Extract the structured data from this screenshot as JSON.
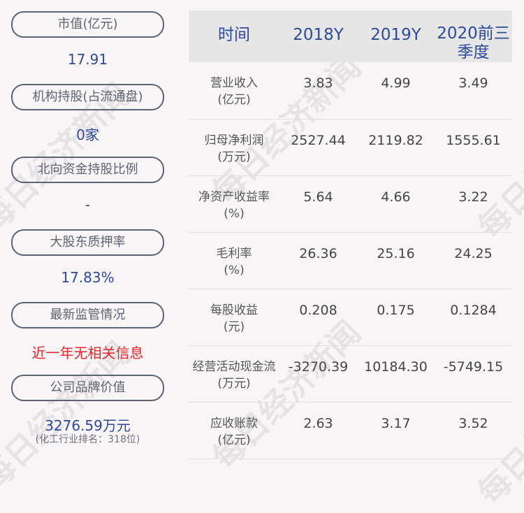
{
  "left": [
    {
      "label": "市值(亿元)",
      "value": "17.91"
    },
    {
      "label": "机构持股(占流通盘)",
      "value": "0家"
    },
    {
      "label": "北向资金持股比例",
      "value": "-"
    },
    {
      "label": "大股东质押率",
      "value": "17.83%"
    },
    {
      "label": "最新监管情况",
      "value": "近一年无相关信息"
    },
    {
      "label": "公司品牌价值",
      "value": "3276.59万元",
      "sub": "(化工行业排名：318位)"
    }
  ],
  "colors": {
    "accent": "#2d4a9a",
    "alert": "#e6262b",
    "header_bg": "#e6e6e6"
  },
  "watermark": "每日经济新闻",
  "table": {
    "headers": [
      "时间",
      "2018Y",
      "2019Y",
      "2020前三季度"
    ],
    "rows": [
      {
        "label": "营业收入",
        "unit": "(亿元)",
        "values": [
          "3.83",
          "4.99",
          "3.49"
        ]
      },
      {
        "label": "归母净利润",
        "unit": "(万元)",
        "values": [
          "2527.44",
          "2119.82",
          "1555.61"
        ]
      },
      {
        "label": "净资产收益率",
        "unit": "(%)",
        "values": [
          "5.64",
          "4.66",
          "3.22"
        ]
      },
      {
        "label": "毛利率",
        "unit": "(%)",
        "values": [
          "26.36",
          "25.16",
          "24.25"
        ]
      },
      {
        "label": "每股收益",
        "unit": "(元)",
        "values": [
          "0.208",
          "0.175",
          "0.1284"
        ]
      },
      {
        "label": "经营活动现金流",
        "unit": "(万元)",
        "values": [
          "-3270.39",
          "10184.30",
          "-5749.15"
        ]
      },
      {
        "label": "应收账款",
        "unit": "(亿元)",
        "values": [
          "2.63",
          "3.17",
          "3.52"
        ]
      }
    ]
  }
}
